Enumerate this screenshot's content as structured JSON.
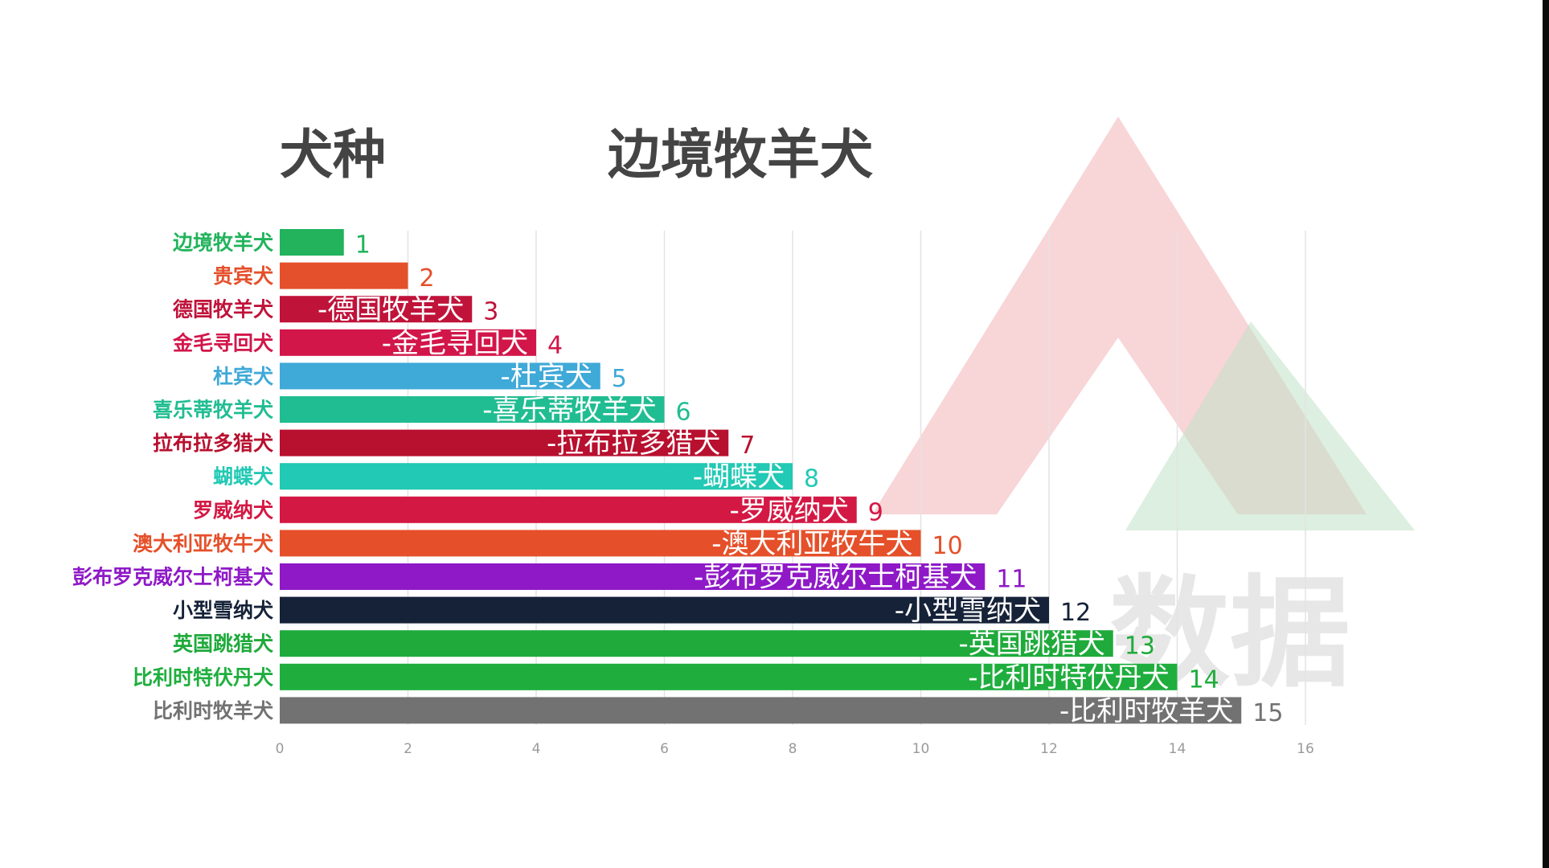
{
  "header": {
    "label": "犬种",
    "current": "边境牧羊犬"
  },
  "watermark": {
    "text": "数据"
  },
  "chart_data": {
    "type": "bar",
    "orientation": "horizontal",
    "categories": [
      "边境牧羊犬",
      "贵宾犬",
      "德国牧羊犬",
      "金毛寻回犬",
      "杜宾犬",
      "喜乐蒂牧羊犬",
      "拉布拉多猎犬",
      "蝴蝶犬",
      "罗威纳犬",
      "澳大利亚牧牛犬",
      "彭布罗克威尔士柯基犬",
      "小型雪纳犬",
      "英国跳猎犬",
      "比利时特伏丹犬",
      "比利时牧羊犬"
    ],
    "values": [
      1,
      2,
      3,
      4,
      5,
      6,
      7,
      8,
      9,
      10,
      11,
      12,
      13,
      14,
      15
    ],
    "bar_labels": [
      "",
      "",
      "-德国牧羊犬",
      "-金毛寻回犬",
      "-杜宾犬",
      "-喜乐蒂牧羊犬",
      "-拉布拉多猎犬",
      "-蝴蝶犬",
      "-罗威纳犬",
      "-澳大利亚牧牛犬",
      "-彭布罗克威尔士柯基犬",
      "-小型雪纳犬",
      "-英国跳猎犬",
      "-比利时特伏丹犬",
      "-比利时牧羊犬"
    ],
    "value_labels": [
      "1",
      "2",
      "3",
      "4",
      "5",
      "6",
      "7",
      "8",
      "9",
      "10",
      "11",
      "12",
      "13",
      "14",
      "15"
    ],
    "colors": [
      "#22b35c",
      "#e4502b",
      "#c0133a",
      "#d2164a",
      "#3fa9d8",
      "#21bd92",
      "#b8102f",
      "#22c9b4",
      "#d41844",
      "#e5502a",
      "#8f19c7",
      "#152238",
      "#1faa3b",
      "#1fae3e",
      "#727272"
    ],
    "xlim": [
      0,
      16
    ],
    "x_ticks": [
      "0",
      "2",
      "4",
      "6",
      "8",
      "10",
      "12",
      "14",
      "16"
    ],
    "grid": true,
    "legend": "none"
  }
}
